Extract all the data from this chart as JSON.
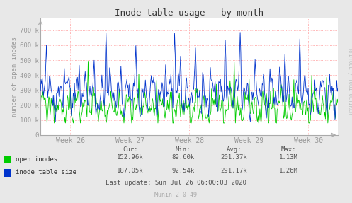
{
  "title": "Inode table usage - by month",
  "ylabel": "number of open inodes",
  "background_color": "#E8E8E8",
  "plot_bg_color": "#FFFFFF",
  "grid_color": "#FF9999",
  "x_tick_labels": [
    "Week 26",
    "Week 27",
    "Week 28",
    "Week 29",
    "Week 30"
  ],
  "ylim_max": 780000,
  "y_ticks": [
    0,
    100000,
    200000,
    300000,
    400000,
    500000,
    600000,
    700000
  ],
  "y_tick_labels": [
    "0",
    "100 k",
    "200 k",
    "300 k",
    "400 k",
    "500 k",
    "600 k",
    "700 k"
  ],
  "green_color": "#00CC00",
  "blue_color": "#0033CC",
  "stats": {
    "headers": [
      "Cur:",
      "Min:",
      "Avg:",
      "Max:"
    ],
    "green_row": [
      "152.96k",
      "89.60k",
      "201.37k",
      "1.13M"
    ],
    "blue_row": [
      "187.05k",
      "92.54k",
      "291.17k",
      "1.26M"
    ]
  },
  "last_update": "Last update: Sun Jul 26 06:00:03 2020",
  "munin_version": "Munin 2.0.49",
  "rrdtool_label": "RRDTOOL / TOBI OETIKER",
  "text_color": "#333333",
  "stats_color": "#555555",
  "munin_color": "#AAAAAA",
  "tick_color": "#999999",
  "spine_color": "#AAAAAA"
}
